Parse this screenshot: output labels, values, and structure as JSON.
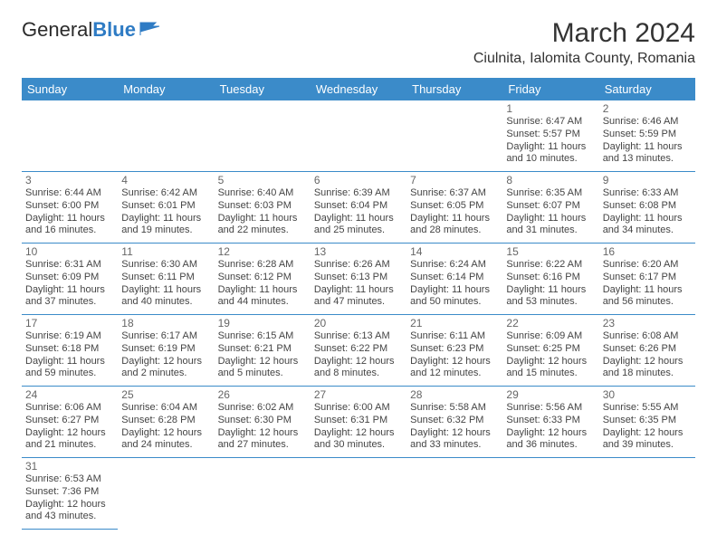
{
  "logo": {
    "text1": "General",
    "text2": "Blue"
  },
  "title": "March 2024",
  "location": "Ciulnita, Ialomita County, Romania",
  "headers": [
    "Sunday",
    "Monday",
    "Tuesday",
    "Wednesday",
    "Thursday",
    "Friday",
    "Saturday"
  ],
  "colors": {
    "header_bg": "#3b8bc9",
    "header_text": "#ffffff",
    "border": "#3b8bc9",
    "logo_blue": "#2e7bc4"
  },
  "weeks": [
    [
      null,
      null,
      null,
      null,
      null,
      {
        "d": "1",
        "sr": "6:47 AM",
        "ss": "5:57 PM",
        "dl": "11 hours and 10 minutes."
      },
      {
        "d": "2",
        "sr": "6:46 AM",
        "ss": "5:59 PM",
        "dl": "11 hours and 13 minutes."
      }
    ],
    [
      {
        "d": "3",
        "sr": "6:44 AM",
        "ss": "6:00 PM",
        "dl": "11 hours and 16 minutes."
      },
      {
        "d": "4",
        "sr": "6:42 AM",
        "ss": "6:01 PM",
        "dl": "11 hours and 19 minutes."
      },
      {
        "d": "5",
        "sr": "6:40 AM",
        "ss": "6:03 PM",
        "dl": "11 hours and 22 minutes."
      },
      {
        "d": "6",
        "sr": "6:39 AM",
        "ss": "6:04 PM",
        "dl": "11 hours and 25 minutes."
      },
      {
        "d": "7",
        "sr": "6:37 AM",
        "ss": "6:05 PM",
        "dl": "11 hours and 28 minutes."
      },
      {
        "d": "8",
        "sr": "6:35 AM",
        "ss": "6:07 PM",
        "dl": "11 hours and 31 minutes."
      },
      {
        "d": "9",
        "sr": "6:33 AM",
        "ss": "6:08 PM",
        "dl": "11 hours and 34 minutes."
      }
    ],
    [
      {
        "d": "10",
        "sr": "6:31 AM",
        "ss": "6:09 PM",
        "dl": "11 hours and 37 minutes."
      },
      {
        "d": "11",
        "sr": "6:30 AM",
        "ss": "6:11 PM",
        "dl": "11 hours and 40 minutes."
      },
      {
        "d": "12",
        "sr": "6:28 AM",
        "ss": "6:12 PM",
        "dl": "11 hours and 44 minutes."
      },
      {
        "d": "13",
        "sr": "6:26 AM",
        "ss": "6:13 PM",
        "dl": "11 hours and 47 minutes."
      },
      {
        "d": "14",
        "sr": "6:24 AM",
        "ss": "6:14 PM",
        "dl": "11 hours and 50 minutes."
      },
      {
        "d": "15",
        "sr": "6:22 AM",
        "ss": "6:16 PM",
        "dl": "11 hours and 53 minutes."
      },
      {
        "d": "16",
        "sr": "6:20 AM",
        "ss": "6:17 PM",
        "dl": "11 hours and 56 minutes."
      }
    ],
    [
      {
        "d": "17",
        "sr": "6:19 AM",
        "ss": "6:18 PM",
        "dl": "11 hours and 59 minutes."
      },
      {
        "d": "18",
        "sr": "6:17 AM",
        "ss": "6:19 PM",
        "dl": "12 hours and 2 minutes."
      },
      {
        "d": "19",
        "sr": "6:15 AM",
        "ss": "6:21 PM",
        "dl": "12 hours and 5 minutes."
      },
      {
        "d": "20",
        "sr": "6:13 AM",
        "ss": "6:22 PM",
        "dl": "12 hours and 8 minutes."
      },
      {
        "d": "21",
        "sr": "6:11 AM",
        "ss": "6:23 PM",
        "dl": "12 hours and 12 minutes."
      },
      {
        "d": "22",
        "sr": "6:09 AM",
        "ss": "6:25 PM",
        "dl": "12 hours and 15 minutes."
      },
      {
        "d": "23",
        "sr": "6:08 AM",
        "ss": "6:26 PM",
        "dl": "12 hours and 18 minutes."
      }
    ],
    [
      {
        "d": "24",
        "sr": "6:06 AM",
        "ss": "6:27 PM",
        "dl": "12 hours and 21 minutes."
      },
      {
        "d": "25",
        "sr": "6:04 AM",
        "ss": "6:28 PM",
        "dl": "12 hours and 24 minutes."
      },
      {
        "d": "26",
        "sr": "6:02 AM",
        "ss": "6:30 PM",
        "dl": "12 hours and 27 minutes."
      },
      {
        "d": "27",
        "sr": "6:00 AM",
        "ss": "6:31 PM",
        "dl": "12 hours and 30 minutes."
      },
      {
        "d": "28",
        "sr": "5:58 AM",
        "ss": "6:32 PM",
        "dl": "12 hours and 33 minutes."
      },
      {
        "d": "29",
        "sr": "5:56 AM",
        "ss": "6:33 PM",
        "dl": "12 hours and 36 minutes."
      },
      {
        "d": "30",
        "sr": "5:55 AM",
        "ss": "6:35 PM",
        "dl": "12 hours and 39 minutes."
      }
    ],
    [
      {
        "d": "31",
        "sr": "6:53 AM",
        "ss": "7:36 PM",
        "dl": "12 hours and 43 minutes."
      },
      null,
      null,
      null,
      null,
      null,
      null
    ]
  ],
  "labels": {
    "sunrise": "Sunrise:",
    "sunset": "Sunset:",
    "daylight": "Daylight:"
  }
}
